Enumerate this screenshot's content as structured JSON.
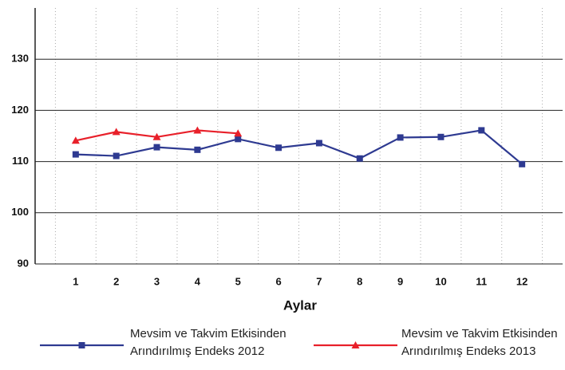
{
  "chart_data": {
    "type": "line",
    "xlabel": "Aylar",
    "categories": [
      "1",
      "2",
      "3",
      "4",
      "5",
      "6",
      "7",
      "8",
      "9",
      "10",
      "11",
      "12"
    ],
    "series": [
      {
        "name": "Mevsim ve Takvim Etkisinden Arındırılmış Endeks 2012",
        "color": "#2e3a91",
        "marker": "square",
        "values": [
          111.4,
          111.1,
          112.8,
          112.3,
          114.4,
          112.7,
          113.6,
          110.6,
          114.7,
          114.8,
          116.1,
          109.5
        ]
      },
      {
        "name": "Mevsim ve Takvim Etkisinden Arındırılmış Endeks 2013",
        "color": "#e8202a",
        "marker": "triangle",
        "values": [
          114.1,
          115.8,
          114.8,
          116.1,
          115.5,
          null,
          null,
          null,
          null,
          null,
          null,
          null
        ]
      }
    ],
    "ylim": [
      90,
      140
    ],
    "yticks": [
      90,
      100,
      110,
      120,
      130
    ],
    "grid": true
  }
}
